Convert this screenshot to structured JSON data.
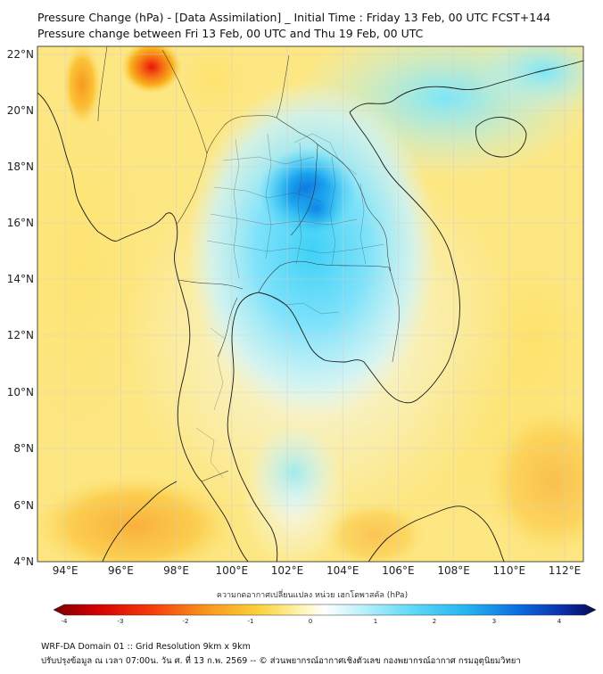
{
  "header": {
    "title_line1": "Pressure Change (hPa) - [Data Assimilation] _ Initial Time : Friday 13 Feb, 00 UTC FCST+144",
    "title_line2": "Pressure change between Fri 13 Feb, 00 UTC and Thu 19 Feb, 00 UTC"
  },
  "map": {
    "lat_labels": [
      "22°N",
      "20°N",
      "18°N",
      "16°N",
      "14°N",
      "12°N",
      "10°N",
      "8°N",
      "6°N",
      "4°N"
    ],
    "lon_labels": [
      "94°E",
      "96°E",
      "98°E",
      "100°E",
      "102°E",
      "104°E",
      "106°E",
      "108°E",
      "110°E",
      "112°E"
    ],
    "lat_range": [
      4,
      22.3
    ],
    "lon_range": [
      93.1,
      112.8
    ],
    "field_extremes": {
      "max_rise_near": "102.5°E, 17°N (~+3 hPa)",
      "max_fall_near": "97°E, 21.5°N (~-2.5 hPa)"
    }
  },
  "colorbar": {
    "title": "ความกดอากาศเปลี่ยนแปลง หน่วย เฮกโตพาสคัล (hPa)",
    "range": [
      -4,
      4
    ],
    "tick_labels": [
      "-4",
      "-3",
      "-2",
      "-1",
      "0",
      "1",
      "2",
      "3",
      "4"
    ]
  },
  "footer": {
    "line1": "WRF-DA Domain 01 :: Grid Resolution 9km x 9km",
    "line2": "ปรับปรุงข้อมูล ณ เวลา 07:00น. วัน ศ. ที่ 13 ก.พ. 2569 -- © ส่วนพยากรณ์อากาศเชิงตัวเลข กองพยากรณ์อากาศ กรมอุตุนิยมวิทยา"
  },
  "colors": {
    "neutral": "#fffce8",
    "negative_light": "#fdea7a",
    "negative_mid": "#f9b21e",
    "negative_strong": "#e8160a",
    "positive_light": "#b8f1fb",
    "positive_mid": "#3fd1f6",
    "positive_strong": "#0a6fdf"
  }
}
